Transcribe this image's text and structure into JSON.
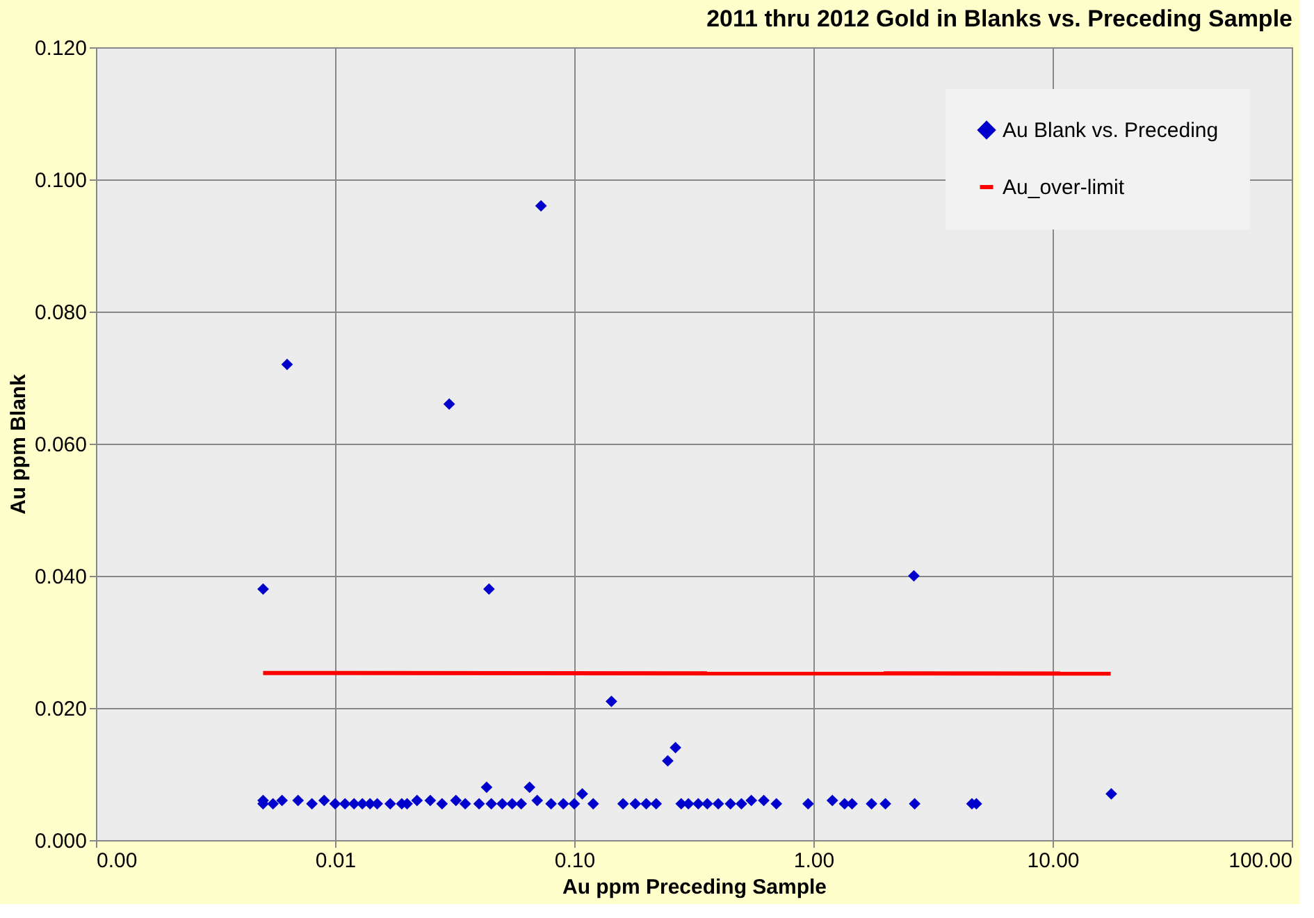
{
  "chart_data": {
    "type": "scatter",
    "title": "2011 thru 2012 Gold in Blanks vs. Preceding Sample",
    "xlabel": "Au ppm Preceding Sample",
    "ylabel": "Au ppm Blank",
    "log": "x",
    "grid": true,
    "legend": "top right",
    "xlim": [
      0.001,
      100
    ],
    "xticks": [
      {
        "value": 0.001,
        "label": "0.00"
      },
      {
        "value": 0.01,
        "label": "0.01"
      },
      {
        "value": 0.1,
        "label": "0.10"
      },
      {
        "value": 1,
        "label": "1.00"
      },
      {
        "value": 10,
        "label": "10.00"
      },
      {
        "value": 100,
        "label": "100.00"
      }
    ],
    "ylim": [
      0,
      0.12
    ],
    "yticks": [
      {
        "value": 0,
        "label": "0.000"
      },
      {
        "value": 0.02,
        "label": "0.020"
      },
      {
        "value": 0.04,
        "label": "0.040"
      },
      {
        "value": 0.06,
        "label": "0.060"
      },
      {
        "value": 0.08,
        "label": "0.080"
      },
      {
        "value": 0.1,
        "label": "0.100"
      },
      {
        "value": 0.12,
        "label": "0.120"
      }
    ],
    "series": [
      {
        "name": "Au Blank vs. Preceding",
        "marker": "diamond",
        "color": "#0000cc",
        "x": [
          0.0063,
          0.005,
          0.03,
          0.044,
          0.0726,
          0.143,
          0.246,
          0.265,
          2.63,
          17.6,
          0.108,
          0.043,
          0.065,
          0.005,
          0.005,
          0.0055,
          0.006,
          0.007,
          0.008,
          0.009,
          0.01,
          0.011,
          0.012,
          0.013,
          0.014,
          0.015,
          0.017,
          0.019,
          0.02,
          0.022,
          0.025,
          0.028,
          0.032,
          0.035,
          0.04,
          0.045,
          0.05,
          0.055,
          0.06,
          0.07,
          0.08,
          0.09,
          0.1,
          0.12,
          0.16,
          0.18,
          0.2,
          0.22,
          0.28,
          0.3,
          0.33,
          0.36,
          0.4,
          0.45,
          0.5,
          0.55,
          0.62,
          0.7,
          0.95,
          1.2,
          1.35,
          1.45,
          1.75,
          2.0,
          2.65,
          4.6,
          4.8
        ],
        "values": [
          0.072,
          0.038,
          0.066,
          0.038,
          0.096,
          0.021,
          0.012,
          0.014,
          0.04,
          0.007,
          0.007,
          0.008,
          0.008,
          0.006,
          0.0055,
          0.0055,
          0.006,
          0.006,
          0.0055,
          0.006,
          0.0055,
          0.0055,
          0.0055,
          0.0055,
          0.0055,
          0.0055,
          0.0055,
          0.0055,
          0.0055,
          0.006,
          0.006,
          0.0055,
          0.006,
          0.0055,
          0.0055,
          0.0055,
          0.0055,
          0.0055,
          0.0055,
          0.006,
          0.0055,
          0.0055,
          0.0055,
          0.0055,
          0.0055,
          0.0055,
          0.0055,
          0.0055,
          0.0055,
          0.0055,
          0.0055,
          0.0055,
          0.0055,
          0.0055,
          0.0055,
          0.006,
          0.006,
          0.0055,
          0.0055,
          0.006,
          0.0055,
          0.0055,
          0.0055,
          0.0055,
          0.0055,
          0.0055,
          0.0055
        ]
      },
      {
        "name": "Au_over-limit",
        "type": "line",
        "marker": "none",
        "color": "#ff0000",
        "x": [
          0.005,
          17.5
        ],
        "values": [
          0.0253,
          0.0252
        ]
      }
    ]
  }
}
